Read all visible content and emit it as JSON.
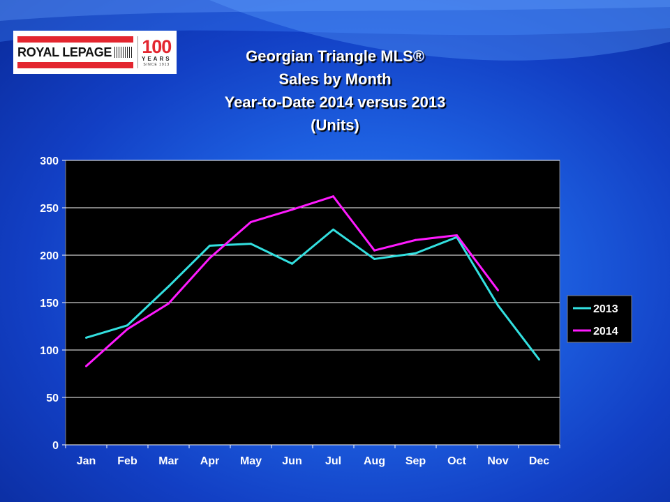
{
  "logo": {
    "brand": "ROYAL LEPAGE",
    "number": "100",
    "years": "YEARS",
    "since": "SINCE 1913"
  },
  "title_lines": [
    "Georgian Triangle MLS®",
    "Sales by Month",
    "Year-to-Date 2014 versus 2013",
    "(Units)"
  ],
  "colors": {
    "plot_bg": "#000000",
    "grid": "#ffffff",
    "series_2013": "#33e0e0",
    "series_2014": "#ff1aff"
  },
  "chart_data": {
    "type": "line",
    "title": "Georgian Triangle MLS® Sales by Month Year-to-Date 2014 versus 2013 (Units)",
    "categories": [
      "Jan",
      "Feb",
      "Mar",
      "Apr",
      "May",
      "Jun",
      "Jul",
      "Aug",
      "Sep",
      "Oct",
      "Nov",
      "Dec"
    ],
    "series": [
      {
        "name": "2013",
        "values": [
          113,
          126,
          167,
          210,
          212,
          191,
          227,
          196,
          202,
          219,
          147,
          90
        ]
      },
      {
        "name": "2014",
        "values": [
          83,
          122,
          149,
          197,
          235,
          248,
          262,
          205,
          216,
          221,
          163,
          null
        ]
      }
    ],
    "ylim": [
      0,
      300
    ],
    "yticks": [
      0,
      50,
      100,
      150,
      200,
      250,
      300
    ],
    "grid": true,
    "legend": "right"
  }
}
